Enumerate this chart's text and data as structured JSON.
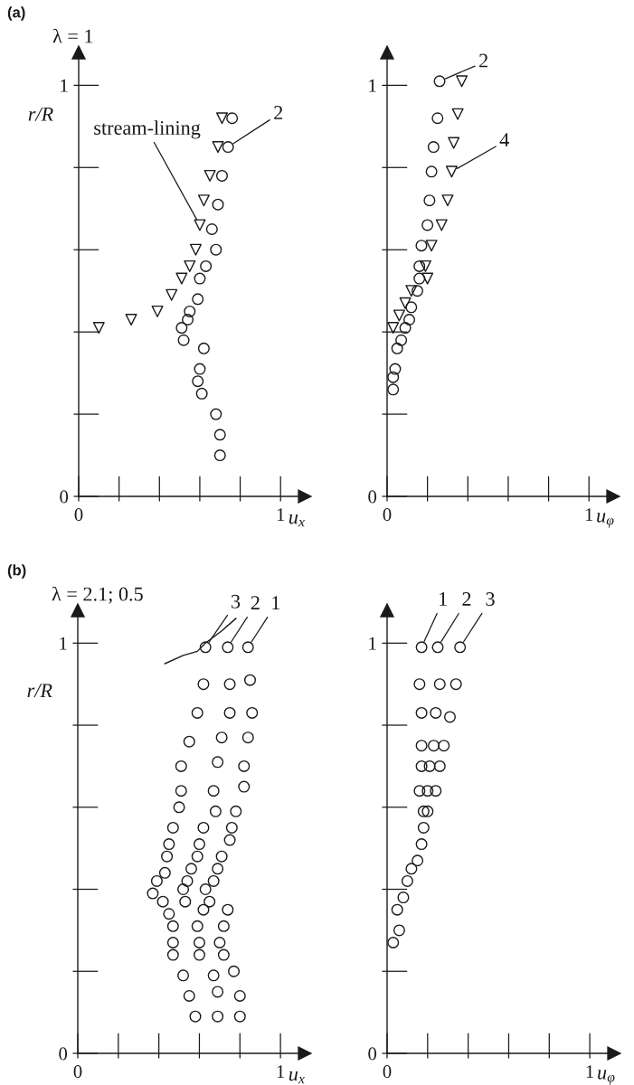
{
  "chart_data": [
    {
      "type": "scatter",
      "title": "(a)",
      "subtitle": "λ = 1",
      "xlabel": "u$_{x}$",
      "ylabel": "r/R",
      "xlim": [
        0,
        1.12
      ],
      "ylim": [
        0,
        1.08
      ],
      "xticks": [
        0,
        {
          "value": 0.2,
          "label": null
        },
        {
          "value": 0.4,
          "label": null
        },
        {
          "value": 0.6,
          "label": null
        },
        {
          "value": 0.8,
          "label": null
        },
        1
      ],
      "yticks": [
        0,
        {
          "value": 0.2,
          "label": null
        },
        {
          "value": 0.4,
          "label": null
        },
        {
          "value": 0.6,
          "label": null
        },
        {
          "value": 0.8,
          "label": null
        },
        1
      ],
      "series": [
        {
          "marker": "circle",
          "color": "#1a1a1a",
          "x": [
            0.76,
            0.74,
            0.71,
            0.69,
            0.66,
            0.68,
            0.63,
            0.6,
            0.59,
            0.55,
            0.54,
            0.51,
            0.52,
            0.62,
            0.6,
            0.59,
            0.61,
            0.68,
            0.7,
            0.7
          ],
          "values": [
            0.92,
            0.85,
            0.78,
            0.71,
            0.65,
            0.6,
            0.56,
            0.53,
            0.48,
            0.45,
            0.43,
            0.41,
            0.38,
            0.36,
            0.31,
            0.28,
            0.25,
            0.2,
            0.15,
            0.1
          ]
        },
        {
          "marker": "triangle",
          "color": "#1a1a1a",
          "x": [
            0.71,
            0.69,
            0.65,
            0.62,
            0.6,
            0.58,
            0.55,
            0.51,
            0.46,
            0.39,
            0.26,
            0.1
          ],
          "values": [
            0.92,
            0.85,
            0.78,
            0.72,
            0.66,
            0.6,
            0.56,
            0.53,
            0.49,
            0.45,
            0.43,
            0.41
          ]
        }
      ],
      "annotations": [
        {
          "text": "stream-lining",
          "x": 0.6,
          "y": 0.66
        },
        {
          "text": "2",
          "x": 0.74,
          "y": 0.85
        }
      ]
    },
    {
      "type": "scatter",
      "xlabel": "u$_{φ}$",
      "xlim": [
        0,
        1.12
      ],
      "ylim": [
        0,
        1.08
      ],
      "xticks": [
        0,
        {
          "value": 0.2,
          "label": null
        },
        {
          "value": 0.4,
          "label": null
        },
        {
          "value": 0.6,
          "label": null
        },
        {
          "value": 0.8,
          "label": null
        },
        1
      ],
      "yticks": [
        0,
        {
          "value": 0.2,
          "label": null
        },
        {
          "value": 0.4,
          "label": null
        },
        {
          "value": 0.6,
          "label": null
        },
        {
          "value": 0.8,
          "label": null
        },
        1
      ],
      "series": [
        {
          "marker": "circle",
          "color": "#1a1a1a",
          "x": [
            0.26,
            0.25,
            0.23,
            0.22,
            0.21,
            0.2,
            0.17,
            0.16,
            0.16,
            0.15,
            0.12,
            0.11,
            0.09,
            0.07,
            0.05,
            0.04,
            0.03,
            0.03
          ],
          "values": [
            1.01,
            0.92,
            0.85,
            0.79,
            0.72,
            0.66,
            0.61,
            0.56,
            0.53,
            0.5,
            0.46,
            0.43,
            0.41,
            0.38,
            0.36,
            0.31,
            0.29,
            0.26
          ]
        },
        {
          "marker": "triangle",
          "color": "#1a1a1a",
          "x": [
            0.37,
            0.35,
            0.33,
            0.32,
            0.3,
            0.27,
            0.22,
            0.19,
            0.2,
            0.12,
            0.09,
            0.06,
            0.03
          ],
          "values": [
            1.01,
            0.93,
            0.86,
            0.79,
            0.72,
            0.66,
            0.61,
            0.56,
            0.53,
            0.5,
            0.47,
            0.44,
            0.41
          ]
        }
      ],
      "annotations": [
        {
          "text": "2",
          "x": 0.26,
          "y": 1.01
        },
        {
          "text": "4",
          "x": 0.32,
          "y": 0.79
        }
      ]
    },
    {
      "type": "scatter",
      "title": "(b)",
      "subtitle": "λ = 2.1; 0.5",
      "xlabel": "u$_{x}$",
      "ylabel": "r/R",
      "xlim": [
        0,
        1.12
      ],
      "ylim": [
        0,
        1.08
      ],
      "xticks": [
        0,
        {
          "value": 0.2,
          "label": null
        },
        {
          "value": 0.4,
          "label": null
        },
        {
          "value": 0.6,
          "label": null
        },
        {
          "value": 0.8,
          "label": null
        },
        1
      ],
      "yticks": [
        0,
        {
          "value": 0.2,
          "label": null
        },
        {
          "value": 0.4,
          "label": null
        },
        {
          "value": 0.6,
          "label": null
        },
        {
          "value": 0.8,
          "label": null
        },
        1
      ],
      "series": [
        {
          "marker": "circle",
          "color": "#1a1a1a",
          "x": [
            0.84,
            0.85,
            0.86,
            0.84,
            0.82,
            0.82,
            0.78,
            0.76,
            0.75,
            0.71,
            0.69,
            0.67,
            0.63,
            0.65,
            0.74,
            0.72,
            0.7,
            0.72,
            0.77,
            0.8,
            0.8
          ],
          "values": [
            0.99,
            0.91,
            0.83,
            0.77,
            0.7,
            0.65,
            0.59,
            0.55,
            0.52,
            0.48,
            0.45,
            0.42,
            0.4,
            0.37,
            0.35,
            0.31,
            0.27,
            0.24,
            0.2,
            0.14,
            0.09
          ]
        },
        {
          "marker": "circle",
          "color": "#1a1a1a",
          "x": [
            0.74,
            0.75,
            0.75,
            0.71,
            0.69,
            0.67,
            0.68,
            0.62,
            0.6,
            0.59,
            0.56,
            0.54,
            0.52,
            0.53,
            0.62,
            0.59,
            0.6,
            0.6,
            0.67,
            0.69,
            0.69
          ],
          "values": [
            0.99,
            0.9,
            0.83,
            0.77,
            0.71,
            0.64,
            0.59,
            0.55,
            0.51,
            0.48,
            0.45,
            0.42,
            0.4,
            0.37,
            0.35,
            0.31,
            0.27,
            0.24,
            0.19,
            0.15,
            0.09
          ]
        },
        {
          "marker": "circle",
          "color": "#1a1a1a",
          "x": [
            0.63,
            0.62,
            0.59,
            0.55,
            0.51,
            0.51,
            0.5,
            0.47,
            0.45,
            0.44,
            0.43,
            0.39,
            0.37,
            0.42,
            0.45,
            0.47,
            0.47,
            0.47,
            0.52,
            0.55,
            0.58
          ],
          "values": [
            0.99,
            0.9,
            0.83,
            0.76,
            0.7,
            0.64,
            0.6,
            0.55,
            0.51,
            0.48,
            0.44,
            0.42,
            0.39,
            0.37,
            0.34,
            0.31,
            0.27,
            0.24,
            0.19,
            0.14,
            0.09
          ]
        },
        {
          "type": "line",
          "marker": "none",
          "line_style": "solid",
          "color": "#1a1a1a",
          "x": [
            0.43,
            0.52,
            0.59,
            0.63,
            0.71,
            0.78
          ],
          "values": [
            0.95,
            0.97,
            0.98,
            1.0,
            1.03,
            1.06
          ]
        }
      ],
      "annotations": [
        {
          "text": "3",
          "x": 0.63,
          "y": 0.99
        },
        {
          "text": "2",
          "x": 0.74,
          "y": 0.99
        },
        {
          "text": "1",
          "x": 0.84,
          "y": 0.99
        }
      ]
    },
    {
      "type": "scatter",
      "xlabel": "u$_{φ}$",
      "xlim": [
        0,
        1.12
      ],
      "ylim": [
        0,
        1.08
      ],
      "xticks": [
        0,
        {
          "value": 0.2,
          "label": null
        },
        {
          "value": 0.4,
          "label": null
        },
        {
          "value": 0.6,
          "label": null
        },
        {
          "value": 0.8,
          "label": null
        },
        1
      ],
      "yticks": [
        0,
        {
          "value": 0.2,
          "label": null
        },
        {
          "value": 0.4,
          "label": null
        },
        {
          "value": 0.6,
          "label": null
        },
        {
          "value": 0.8,
          "label": null
        },
        1
      ],
      "series": [
        {
          "marker": "circle",
          "color": "#1a1a1a",
          "x": [
            0.17,
            0.16,
            0.17,
            0.17,
            0.17,
            0.16,
            0.18,
            0.18,
            0.17,
            0.15,
            0.12,
            0.1,
            0.08,
            0.05,
            0.06,
            0.03
          ],
          "values": [
            0.99,
            0.9,
            0.83,
            0.75,
            0.7,
            0.64,
            0.59,
            0.55,
            0.51,
            0.47,
            0.45,
            0.42,
            0.38,
            0.35,
            0.3,
            0.27
          ]
        },
        {
          "marker": "circle",
          "color": "#1a1a1a",
          "x": [
            0.25,
            0.26,
            0.24,
            0.23,
            0.21,
            0.2,
            0.2
          ],
          "values": [
            0.99,
            0.9,
            0.83,
            0.75,
            0.7,
            0.64,
            0.59
          ]
        },
        {
          "marker": "circle",
          "color": "#1a1a1a",
          "x": [
            0.36,
            0.34,
            0.31,
            0.28,
            0.26,
            0.24
          ],
          "values": [
            0.99,
            0.9,
            0.82,
            0.75,
            0.7,
            0.64
          ]
        }
      ],
      "annotations": [
        {
          "text": "1",
          "x": 0.17,
          "y": 0.99
        },
        {
          "text": "2",
          "x": 0.25,
          "y": 0.99
        },
        {
          "text": "3",
          "x": 0.36,
          "y": 0.99
        }
      ]
    }
  ]
}
